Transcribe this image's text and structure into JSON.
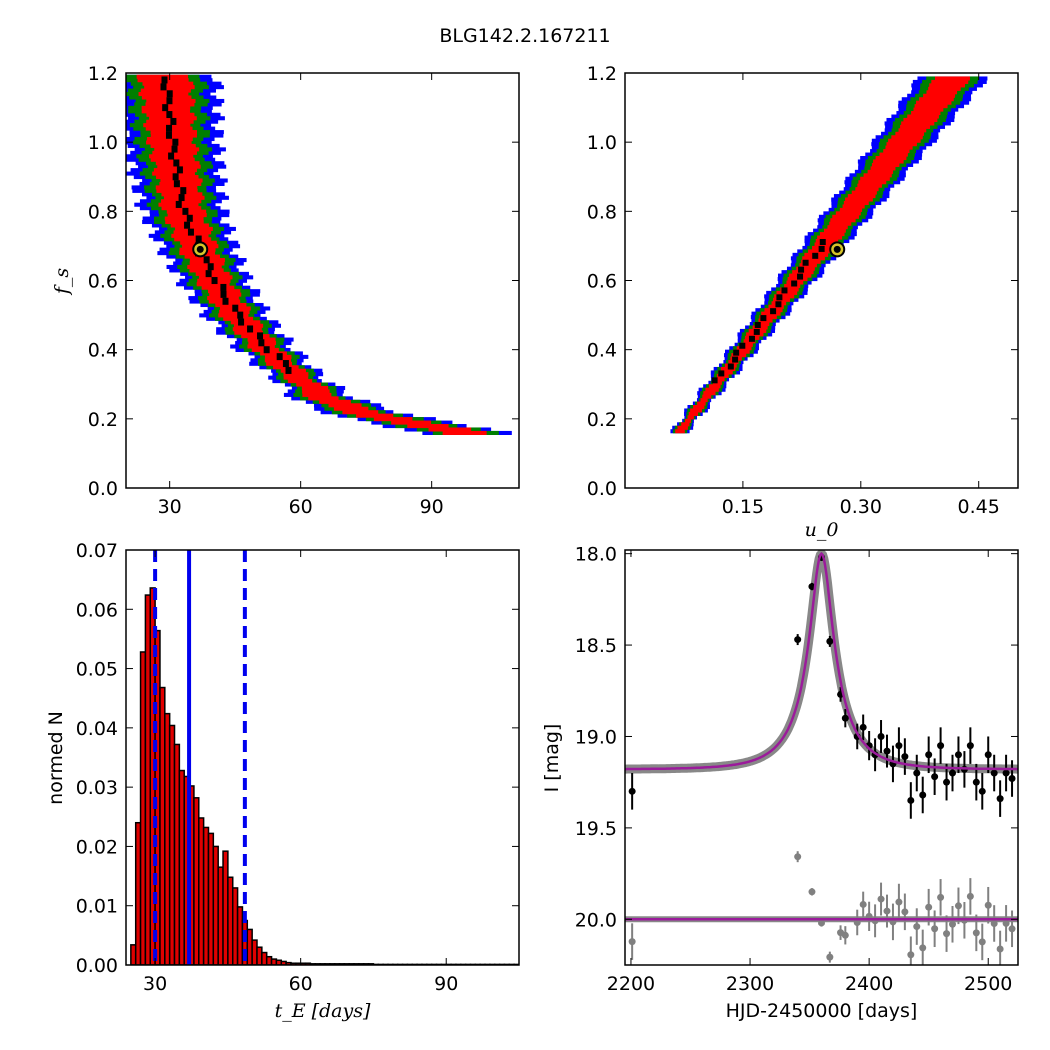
{
  "figure_title": "BLG142.2.167211",
  "colors": {
    "sigma1": "#ff0000",
    "sigma2": "#007f00",
    "sigma3": "#0000ff",
    "best": "#000000",
    "marker": "#d6c42a",
    "fit": "#9b1b9b",
    "model_band": "#888888",
    "hist": "#e00000",
    "vline": "#0000ee",
    "residual": "#808080"
  },
  "chart_data": [
    {
      "id": "fs_vs_tE",
      "type": "heatmap",
      "xlabel": "",
      "ylabel": "f_s",
      "xlim": [
        20,
        110
      ],
      "ylim": [
        0.0,
        1.2
      ],
      "xticks": [
        30,
        60,
        90
      ],
      "yticks": [
        0.0,
        0.2,
        0.4,
        0.6,
        0.8,
        1.0,
        1.2
      ],
      "tick_labels_x": [
        "30",
        "60",
        "90"
      ],
      "tick_labels_y": [
        "0.0",
        "0.2",
        "0.4",
        "0.6",
        "0.8",
        "1.0",
        "1.2"
      ],
      "ridge": {
        "fs": [
          1.18,
          1.0,
          0.8,
          0.69,
          0.6,
          0.5,
          0.4,
          0.33,
          0.25,
          0.2,
          0.16
        ],
        "tE": [
          29,
          30.5,
          33,
          36.5,
          40,
          45,
          52,
          58,
          66,
          78,
          97
        ]
      },
      "best_fit": {
        "tE": 37,
        "fs": 0.69
      }
    },
    {
      "id": "fs_vs_u0",
      "type": "heatmap",
      "xlabel": "u_0",
      "ylabel": "",
      "xlim": [
        0.0,
        0.5
      ],
      "ylim": [
        0.0,
        1.2
      ],
      "xticks": [
        0.15,
        0.3,
        0.45
      ],
      "yticks": [
        0.0,
        0.2,
        0.4,
        0.6,
        0.8,
        1.0,
        1.2
      ],
      "tick_labels_x": [
        "0.15",
        "0.30",
        "0.45"
      ],
      "tick_labels_y": [
        "0.0",
        "0.2",
        "0.4",
        "0.6",
        "0.8",
        "1.0",
        "1.2"
      ],
      "ridge": {
        "u0": [
          0.07,
          0.42
        ],
        "fs": [
          0.16,
          1.19
        ]
      },
      "best_fit": {
        "u0": 0.27,
        "fs": 0.69
      }
    },
    {
      "id": "tE_histogram",
      "type": "bar",
      "xlabel": "t_E  [days]",
      "ylabel": "normed N",
      "xlim": [
        24,
        105
      ],
      "ylim": [
        0.0,
        0.07
      ],
      "xticks": [
        30,
        60,
        90
      ],
      "yticks": [
        0.0,
        0.01,
        0.02,
        0.03,
        0.04,
        0.05,
        0.06,
        0.07
      ],
      "tick_labels_x": [
        "30",
        "60",
        "90"
      ],
      "tick_labels_y": [
        "0.00",
        "0.01",
        "0.02",
        "0.03",
        "0.04",
        "0.05",
        "0.06",
        "0.07"
      ],
      "bin_start": 25,
      "bin_width": 1,
      "values": [
        0.0034,
        0.024,
        0.0528,
        0.0624,
        0.0636,
        0.0564,
        0.0468,
        0.0424,
        0.0404,
        0.0372,
        0.0328,
        0.0318,
        0.0302,
        0.0282,
        0.0248,
        0.0232,
        0.0222,
        0.02,
        0.0165,
        0.0192,
        0.0148,
        0.013,
        0.0098,
        0.0075,
        0.006,
        0.0042,
        0.003,
        0.0021,
        0.0014,
        0.001,
        0.0008,
        0.0006,
        0.0004,
        0.0003,
        0.0003,
        0.0003,
        0.0003,
        0.0002,
        0.0002,
        0.0002,
        0.0002,
        0.0002,
        0.0002,
        0.0002,
        0.0002,
        0.0002,
        0.0002,
        0.0002,
        0.0002,
        0.0002,
        0.0001,
        0.0001,
        0.0001,
        0.0001,
        0.0001,
        0.0001,
        0.0001,
        0.0001,
        0.0001,
        0.0001,
        0.0001,
        0.0001,
        0.0001,
        0.0001,
        0.0001,
        0.0001,
        0.0001,
        0.0001,
        0.0001,
        0.0001,
        0.0001,
        0.0001,
        0.0001,
        0.0001,
        0.0001,
        0.0001,
        0.0001,
        0.0001,
        0.0001,
        0.0001
      ],
      "vlines": {
        "median": 37,
        "lower": 30,
        "upper": 48.5
      }
    },
    {
      "id": "light_curve",
      "type": "scatter",
      "xlabel": "HJD-2450000 [days]",
      "ylabel": "I [mag]",
      "xlim": [
        2195,
        2525
      ],
      "ylim": [
        20.25,
        17.98
      ],
      "xticks": [
        2200,
        2300,
        2400,
        2500
      ],
      "yticks": [
        18.0,
        18.5,
        19.0,
        19.5,
        20.0
      ],
      "tick_labels_x": [
        "2200",
        "2300",
        "2400",
        "2500"
      ],
      "tick_labels_y": [
        "18.0",
        "18.5",
        "19.0",
        "19.5",
        "20.0"
      ],
      "model": {
        "t0": 2360,
        "base_mag": 19.18,
        "peak_mag": 18.0,
        "tE": 37,
        "u0": 0.27
      },
      "residual_offset": 20.0,
      "points": [
        {
          "t": 2201,
          "mag": 19.3,
          "err": 0.1
        },
        {
          "t": 2340,
          "mag": 18.47,
          "err": 0.03
        },
        {
          "t": 2352,
          "mag": 18.18,
          "err": 0.02
        },
        {
          "t": 2360,
          "mag": 18.02,
          "err": 0.02
        },
        {
          "t": 2367,
          "mag": 18.48,
          "err": 0.03
        },
        {
          "t": 2376,
          "mag": 18.77,
          "err": 0.04
        },
        {
          "t": 2380,
          "mag": 18.9,
          "err": 0.05
        },
        {
          "t": 2390,
          "mag": 19.0,
          "err": 0.07
        },
        {
          "t": 2395,
          "mag": 18.95,
          "err": 0.07
        },
        {
          "t": 2400,
          "mag": 19.05,
          "err": 0.08
        },
        {
          "t": 2405,
          "mag": 19.1,
          "err": 0.09
        },
        {
          "t": 2410,
          "mag": 19.0,
          "err": 0.09
        },
        {
          "t": 2415,
          "mag": 19.08,
          "err": 0.09
        },
        {
          "t": 2420,
          "mag": 19.15,
          "err": 0.1
        },
        {
          "t": 2425,
          "mag": 19.05,
          "err": 0.1
        },
        {
          "t": 2430,
          "mag": 19.11,
          "err": 0.1
        },
        {
          "t": 2435,
          "mag": 19.35,
          "err": 0.1
        },
        {
          "t": 2440,
          "mag": 19.2,
          "err": 0.1
        },
        {
          "t": 2445,
          "mag": 19.32,
          "err": 0.1
        },
        {
          "t": 2450,
          "mag": 19.1,
          "err": 0.1
        },
        {
          "t": 2455,
          "mag": 19.22,
          "err": 0.1
        },
        {
          "t": 2460,
          "mag": 19.05,
          "err": 0.1
        },
        {
          "t": 2465,
          "mag": 19.25,
          "err": 0.1
        },
        {
          "t": 2470,
          "mag": 19.2,
          "err": 0.1
        },
        {
          "t": 2475,
          "mag": 19.1,
          "err": 0.1
        },
        {
          "t": 2480,
          "mag": 19.18,
          "err": 0.1
        },
        {
          "t": 2485,
          "mag": 19.05,
          "err": 0.1
        },
        {
          "t": 2490,
          "mag": 19.25,
          "err": 0.1
        },
        {
          "t": 2495,
          "mag": 19.3,
          "err": 0.1
        },
        {
          "t": 2500,
          "mag": 19.1,
          "err": 0.1
        },
        {
          "t": 2505,
          "mag": 19.2,
          "err": 0.1
        },
        {
          "t": 2510,
          "mag": 19.34,
          "err": 0.1
        },
        {
          "t": 2515,
          "mag": 19.2,
          "err": 0.1
        },
        {
          "t": 2520,
          "mag": 19.23,
          "err": 0.1
        }
      ]
    }
  ]
}
